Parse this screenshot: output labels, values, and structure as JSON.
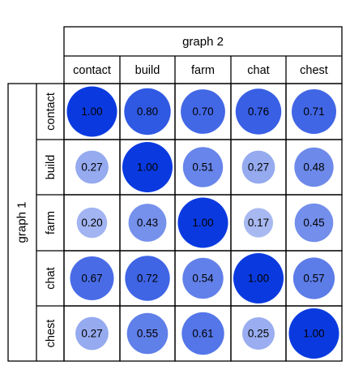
{
  "chart_data": {
    "type": "heatmap",
    "x_title": "graph 2",
    "y_title": "graph 1",
    "columns": [
      "contact",
      "build",
      "farm",
      "chat",
      "chest"
    ],
    "rows": [
      "contact",
      "build",
      "farm",
      "chat",
      "chest"
    ],
    "values": [
      [
        1.0,
        0.8,
        0.7,
        0.76,
        0.71
      ],
      [
        0.27,
        1.0,
        0.51,
        0.27,
        0.48
      ],
      [
        0.2,
        0.43,
        1.0,
        0.17,
        0.45
      ],
      [
        0.67,
        0.72,
        0.54,
        1.0,
        0.57
      ],
      [
        0.27,
        0.55,
        0.61,
        0.25,
        1.0
      ]
    ],
    "value_labels": [
      [
        "1.00",
        "0.80",
        "0.70",
        "0.76",
        "0.71"
      ],
      [
        "0.27",
        "1.00",
        "0.51",
        "0.27",
        "0.48"
      ],
      [
        "0.20",
        "0.43",
        "1.00",
        "0.17",
        "0.45"
      ],
      [
        "0.67",
        "0.72",
        "0.54",
        "1.00",
        "0.57"
      ],
      [
        "0.27",
        "0.55",
        "0.61",
        "0.25",
        "1.00"
      ]
    ],
    "color_low": "#c8d3f5",
    "color_high": "#0a3adf",
    "grid": true
  }
}
